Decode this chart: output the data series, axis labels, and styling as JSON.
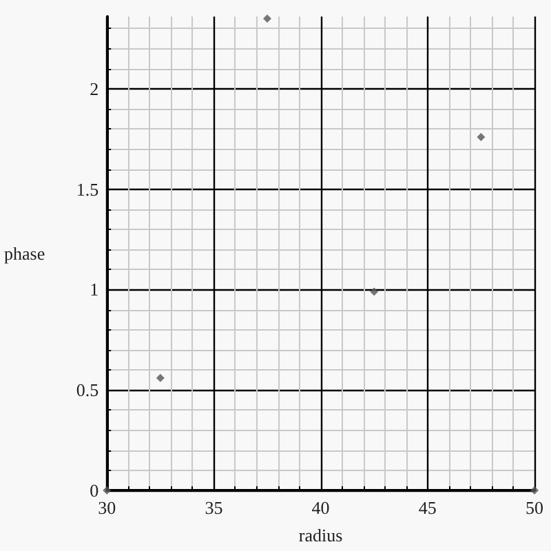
{
  "chart_data": {
    "type": "scatter",
    "xlabel": "radius",
    "ylabel": "phase",
    "x": [
      30,
      32.5,
      37.5,
      42.5,
      47.5,
      50
    ],
    "values": [
      0,
      0.56,
      2.35,
      0.99,
      1.76,
      0
    ],
    "color": "#555555",
    "xlim": [
      30,
      50
    ],
    "xticks": [
      30,
      35,
      40,
      45,
      50
    ],
    "ylim": [
      0,
      2.36
    ],
    "yticks": [
      0,
      0.5,
      1,
      1.5,
      2
    ],
    "grid": true,
    "marker": "diamond"
  }
}
